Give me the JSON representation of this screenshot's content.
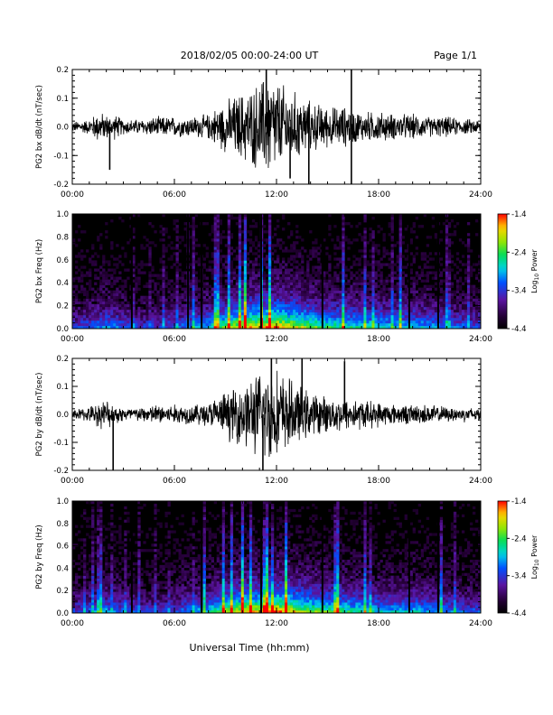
{
  "header": {
    "date_range": "2018/02/05  00:00-24:00 UT",
    "page": "Page 1/1"
  },
  "x_axis": {
    "tick_labels": [
      "00:00",
      "06:00",
      "12:00",
      "18:00",
      "24:00"
    ],
    "label": "Universal Time (hh:mm)"
  },
  "chart_data": [
    {
      "type": "line",
      "ylabel": "PG2 bx dB/dt (nT/sec)",
      "ylim": [
        -0.2,
        0.2
      ],
      "yticks": [
        "-0.2",
        "-0.1",
        "0.0",
        "0.1",
        "0.2"
      ],
      "x_range_hours": [
        0,
        24
      ],
      "series": [
        {
          "x_hours": [
            0,
            1,
            1.5,
            2,
            2.3,
            2.5,
            3,
            4,
            5,
            6,
            7,
            8,
            8.5,
            9,
            9.5,
            10,
            10.5,
            11,
            11.5,
            12,
            12.5,
            13,
            13.5,
            14,
            15,
            16,
            16.5,
            17,
            18,
            19,
            20,
            21,
            22,
            23,
            24
          ],
          "amplitude": [
            0.02,
            0.03,
            0.06,
            0.05,
            0.04,
            0.05,
            0.03,
            0.03,
            0.04,
            0.04,
            0.04,
            0.05,
            0.08,
            0.1,
            0.12,
            0.14,
            0.15,
            0.18,
            0.21,
            0.19,
            0.16,
            0.14,
            0.12,
            0.1,
            0.08,
            0.08,
            0.07,
            0.06,
            0.06,
            0.05,
            0.05,
            0.04,
            0.04,
            0.03,
            0.03
          ],
          "spikes": [
            {
              "t_hours": 2.2,
              "value": -0.15
            },
            {
              "t_hours": 11.4,
              "value": 0.21
            },
            {
              "t_hours": 12.8,
              "value": -0.18
            },
            {
              "t_hours": 13.9,
              "value": -0.21
            },
            {
              "t_hours": 16.4,
              "value": 0.21
            },
            {
              "t_hours": 16.4,
              "value": -0.21
            }
          ]
        }
      ]
    },
    {
      "type": "heatmap",
      "ylabel": "PG2 bx Freq (Hz)",
      "ylim": [
        0.0,
        1.0
      ],
      "yticks": [
        "0.0",
        "0.2",
        "0.4",
        "0.6",
        "0.8",
        "1.0"
      ],
      "x_range_hours": [
        0,
        24
      ],
      "colorbar": {
        "label": "Log10 Power",
        "range": [
          -4.4,
          -1.4
        ],
        "tick_labels": [
          "-1.4",
          "-2.4",
          "-3.4",
          "-4.4"
        ]
      },
      "activity_hours": [
        0,
        2,
        4,
        6,
        8,
        9,
        10,
        11,
        12,
        13,
        14,
        15,
        16,
        17,
        18,
        19,
        20,
        21,
        22,
        24
      ],
      "activity_level": [
        0.3,
        0.45,
        0.3,
        0.35,
        0.5,
        0.7,
        0.8,
        0.85,
        0.9,
        0.8,
        0.7,
        0.6,
        0.6,
        0.55,
        0.55,
        0.5,
        0.5,
        0.45,
        0.4,
        0.35
      ],
      "gap_hours": [
        3.5,
        6.8,
        7.6,
        11.1,
        14.7,
        19.8,
        21.5
      ]
    },
    {
      "type": "line",
      "ylabel": "PG2 by dB/dt (nT/sec)",
      "ylim": [
        -0.2,
        0.2
      ],
      "yticks": [
        "-0.2",
        "-0.1",
        "0.0",
        "0.1",
        "0.2"
      ],
      "x_range_hours": [
        0,
        24
      ],
      "series": [
        {
          "x_hours": [
            0,
            1,
            1.5,
            2,
            2.5,
            3,
            4,
            5,
            6,
            7,
            8,
            8.5,
            9,
            9.5,
            10,
            10.5,
            11,
            11.5,
            12,
            12.5,
            13,
            13.5,
            14,
            15,
            16,
            17,
            18,
            19,
            20,
            21,
            22,
            23,
            24
          ],
          "amplitude": [
            0.02,
            0.03,
            0.05,
            0.06,
            0.04,
            0.03,
            0.03,
            0.04,
            0.04,
            0.04,
            0.05,
            0.07,
            0.09,
            0.11,
            0.13,
            0.15,
            0.17,
            0.2,
            0.18,
            0.16,
            0.13,
            0.11,
            0.09,
            0.07,
            0.07,
            0.06,
            0.05,
            0.04,
            0.04,
            0.04,
            0.03,
            0.03,
            0.03
          ],
          "spikes": [
            {
              "t_hours": 2.4,
              "value": -0.2
            },
            {
              "t_hours": 11.2,
              "value": -0.21
            },
            {
              "t_hours": 11.7,
              "value": 0.21
            },
            {
              "t_hours": 13.5,
              "value": 0.2
            },
            {
              "t_hours": 16.0,
              "value": 0.19
            }
          ]
        }
      ]
    },
    {
      "type": "heatmap",
      "ylabel": "PG2 by Freq (Hz)",
      "ylim": [
        0.0,
        1.0
      ],
      "yticks": [
        "0.0",
        "0.2",
        "0.4",
        "0.6",
        "0.8",
        "1.0"
      ],
      "x_range_hours": [
        0,
        24
      ],
      "colorbar": {
        "label": "Log10 Power",
        "range": [
          -4.4,
          -1.4
        ],
        "tick_labels": [
          "-1.4",
          "-2.4",
          "-3.4",
          "-4.4"
        ]
      },
      "activity_hours": [
        0,
        2,
        4,
        6,
        8,
        9,
        10,
        11,
        12,
        13,
        14,
        15,
        16,
        17,
        18,
        19,
        20,
        21,
        22,
        24
      ],
      "activity_level": [
        0.3,
        0.45,
        0.3,
        0.35,
        0.5,
        0.7,
        0.8,
        0.85,
        0.9,
        0.8,
        0.7,
        0.65,
        0.6,
        0.55,
        0.5,
        0.5,
        0.5,
        0.45,
        0.4,
        0.35
      ],
      "gap_hours": [
        3.5,
        7.6,
        11.1,
        14.7,
        19.8,
        21.5
      ]
    }
  ]
}
